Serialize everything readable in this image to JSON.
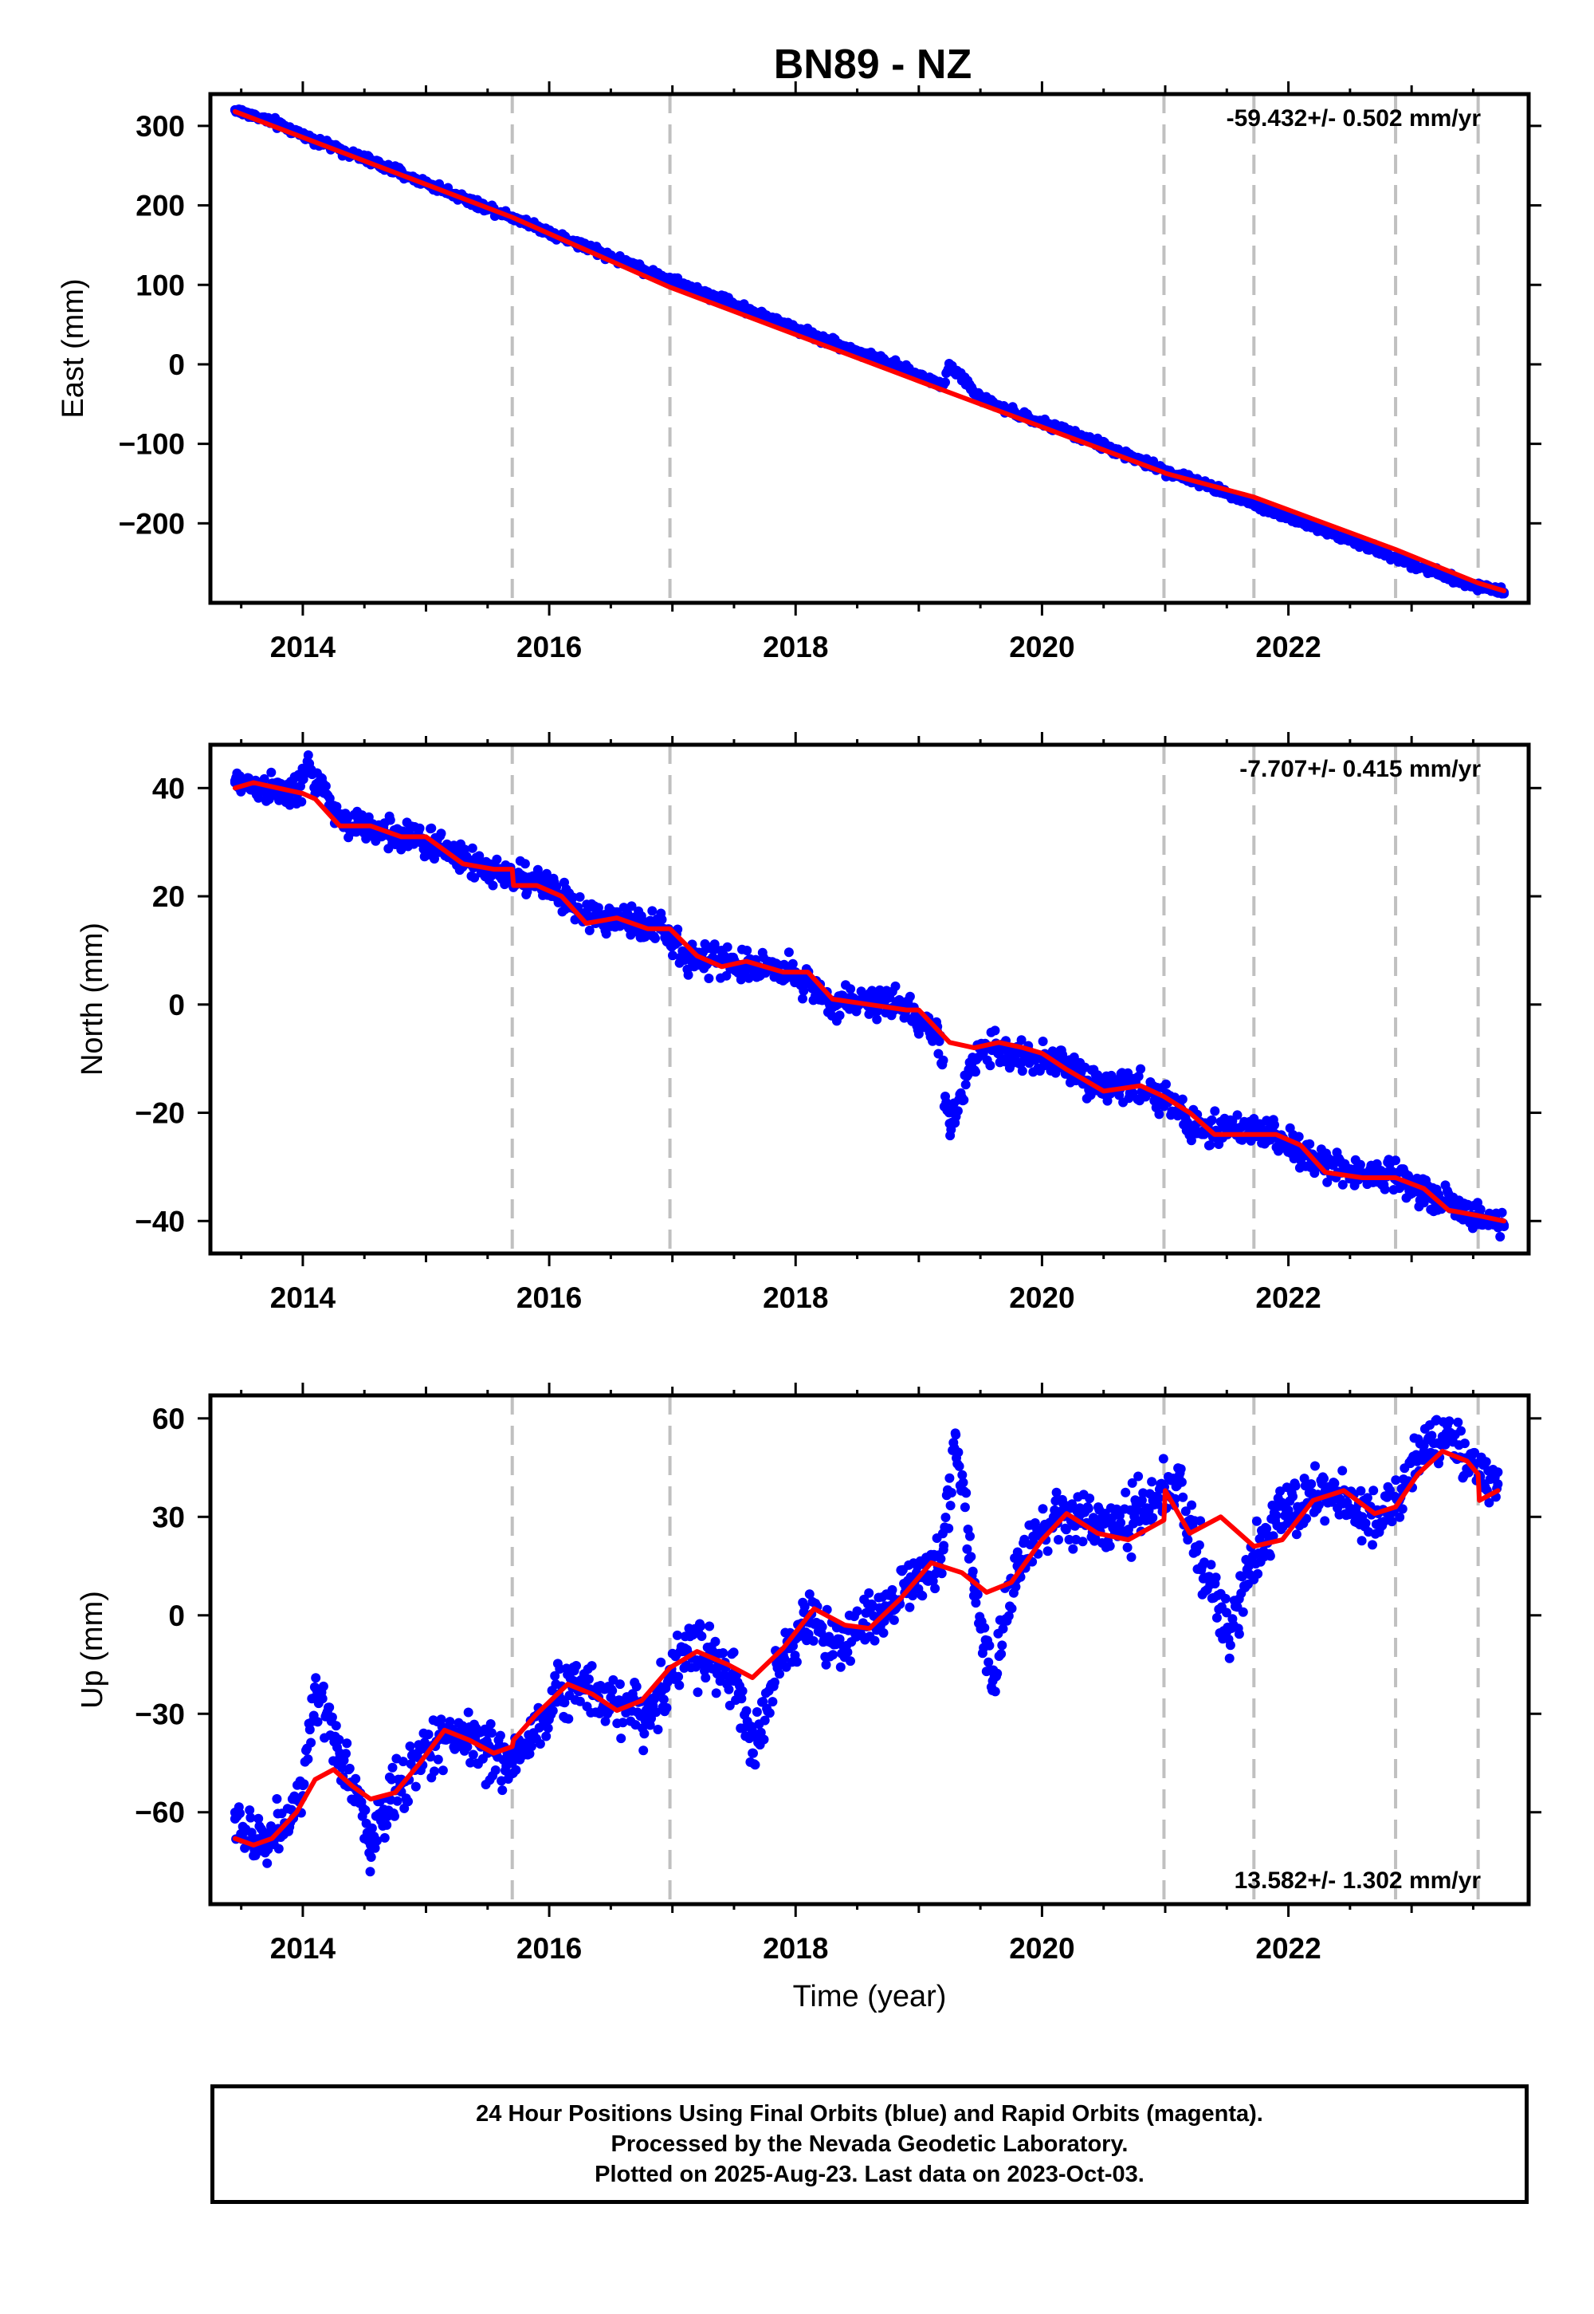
{
  "title": "BN89 - NZ",
  "footer": {
    "line1": "24 Hour Positions Using Final Orbits (blue) and Rapid Orbits (magenta).",
    "line2": "Processed by the Nevada Geodetic Laboratory.",
    "line3": "Plotted on 2025-Aug-23. Last data on 2023-Oct-03."
  },
  "colors": {
    "points": "#0000ff",
    "model": "#ff0000",
    "offset_lines": "#c0c0c0",
    "frame": "#000000"
  },
  "chart_data": [
    {
      "type": "scatter",
      "component": "east",
      "ylabel": "East (mm)",
      "xlabel": "",
      "rate_label": "-59.432+/- 0.502 mm/yr",
      "xlim": [
        2013.25,
        2023.95
      ],
      "ylim": [
        -300,
        340
      ],
      "xticks": [
        2014,
        2016,
        2018,
        2020,
        2022
      ],
      "yticks": [
        -200,
        -100,
        0,
        100,
        200,
        300
      ],
      "ytick_labels": [
        "−200",
        "−100",
        "0",
        "100",
        "200",
        "300"
      ],
      "offset_lines_x": [
        2015.7,
        2016.98,
        2020.99,
        2021.72,
        2022.87,
        2023.54
      ],
      "series": [
        {
          "kind": "points",
          "x": [
            2013.45,
            2013.7,
            2013.95,
            2014.2,
            2014.5,
            2014.8,
            2015.1,
            2015.4,
            2015.7,
            2016.0,
            2016.3,
            2016.6,
            2016.9,
            2017.2,
            2017.5,
            2017.8,
            2018.1,
            2018.4,
            2018.7,
            2019.0,
            2019.2,
            2019.25,
            2019.5,
            2019.8,
            2020.1,
            2020.4,
            2020.7,
            2021.0,
            2021.3,
            2021.6,
            2021.9,
            2022.2,
            2022.5,
            2022.8,
            2023.1,
            2023.4,
            2023.75
          ],
          "y": [
            320,
            308,
            292,
            276,
            259,
            240,
            222,
            203,
            186,
            166,
            148,
            130,
            111,
            93,
            76,
            57,
            39,
            22,
            5,
            -14,
            -26,
            0,
            -43,
            -63,
            -79,
            -96,
            -115,
            -134,
            -150,
            -168,
            -187,
            -204,
            -221,
            -239,
            -256,
            -273,
            -287
          ]
        },
        {
          "kind": "model",
          "x": [
            2013.45,
            2015.7,
            2016.98,
            2019.0,
            2020.99,
            2021.0,
            2021.72,
            2022.87,
            2023.54,
            2023.75
          ],
          "y": [
            318,
            185,
            97,
            -21,
            -136,
            -137,
            -167,
            -233,
            -275,
            -285
          ]
        }
      ]
    },
    {
      "type": "scatter",
      "component": "north",
      "ylabel": "North (mm)",
      "xlabel": "",
      "rate_label": "-7.707+/- 0.415 mm/yr",
      "xlim": [
        2013.25,
        2023.95
      ],
      "ylim": [
        -46,
        48
      ],
      "xticks": [
        2014,
        2016,
        2018,
        2020,
        2022
      ],
      "yticks": [
        -40,
        -20,
        0,
        20,
        40
      ],
      "ytick_labels": [
        "−40",
        "−20",
        "0",
        "20",
        "40"
      ],
      "offset_lines_x": [
        2015.7,
        2016.98,
        2020.99,
        2021.72,
        2022.87,
        2023.54
      ],
      "series": [
        {
          "kind": "points",
          "x": [
            2013.45,
            2013.7,
            2013.95,
            2014.05,
            2014.3,
            2014.6,
            2014.9,
            2015.2,
            2015.5,
            2015.8,
            2016.0,
            2016.3,
            2016.6,
            2016.9,
            2017.1,
            2017.4,
            2017.7,
            2018.0,
            2018.3,
            2018.6,
            2018.9,
            2019.15,
            2019.25,
            2019.5,
            2019.8,
            2020.1,
            2020.4,
            2020.7,
            2021.0,
            2021.3,
            2021.6,
            2021.9,
            2022.2,
            2022.5,
            2022.8,
            2023.1,
            2023.4,
            2023.75
          ],
          "y": [
            41,
            40,
            39,
            44,
            34,
            32,
            31,
            28,
            25,
            23,
            22,
            16,
            16,
            14,
            9,
            8,
            7,
            6,
            0,
            1,
            -1,
            -5,
            -22,
            -8,
            -9,
            -10,
            -15,
            -15,
            -17,
            -24,
            -23,
            -24,
            -29,
            -31,
            -31,
            -34,
            -38,
            -41
          ]
        },
        {
          "kind": "model",
          "x": [
            2013.45,
            2013.6,
            2013.8,
            2014.0,
            2014.1,
            2014.3,
            2014.55,
            2014.8,
            2015.0,
            2015.3,
            2015.55,
            2015.7,
            2015.71,
            2015.9,
            2016.1,
            2016.3,
            2016.55,
            2016.8,
            2016.98,
            2017.2,
            2017.4,
            2017.6,
            2017.9,
            2018.1,
            2018.3,
            2018.6,
            2018.9,
            2019.0,
            2019.25,
            2019.45,
            2019.65,
            2019.85,
            2020.0,
            2020.2,
            2020.5,
            2020.8,
            2020.99,
            2021.2,
            2021.4,
            2021.72,
            2021.9,
            2022.1,
            2022.3,
            2022.6,
            2022.87,
            2023.1,
            2023.3,
            2023.54,
            2023.75
          ],
          "y": [
            40,
            41,
            40,
            39,
            38,
            33,
            33,
            31,
            31,
            26,
            25,
            25,
            22,
            22,
            20,
            15,
            16,
            14,
            14,
            9,
            7,
            8,
            6,
            6,
            1,
            0,
            -1,
            -1,
            -7,
            -8,
            -7,
            -8,
            -9,
            -12,
            -16,
            -15,
            -17,
            -20,
            -24,
            -24,
            -24,
            -26,
            -31,
            -32,
            -32,
            -34,
            -38,
            -39,
            -40
          ]
        }
      ]
    },
    {
      "type": "scatter",
      "component": "up",
      "ylabel": "Up (mm)",
      "xlabel": "Time (year)",
      "rate_label": "13.582+/- 1.302 mm/yr",
      "xlim": [
        2013.25,
        2023.95
      ],
      "ylim": [
        -88,
        67
      ],
      "xticks": [
        2014,
        2016,
        2018,
        2020,
        2022
      ],
      "yticks": [
        -60,
        -30,
        0,
        30,
        60
      ],
      "ytick_labels": [
        "−60",
        "−30",
        "0",
        "30",
        "60"
      ],
      "offset_lines_x": [
        2015.7,
        2016.98,
        2020.99,
        2021.72,
        2022.87,
        2023.54
      ],
      "series": [
        {
          "kind": "points",
          "x": [
            2013.45,
            2013.6,
            2013.8,
            2014.0,
            2014.1,
            2014.3,
            2014.45,
            2014.55,
            2014.8,
            2015.1,
            2015.3,
            2015.5,
            2015.7,
            2016.0,
            2016.2,
            2016.5,
            2016.8,
            2017.0,
            2017.1,
            2017.3,
            2017.5,
            2017.65,
            2017.9,
            2018.1,
            2018.3,
            2018.5,
            2018.8,
            2019.0,
            2019.2,
            2019.3,
            2019.45,
            2019.6,
            2019.8,
            2020.1,
            2020.3,
            2020.6,
            2020.9,
            2021.1,
            2021.3,
            2021.5,
            2021.6,
            2021.8,
            2022.0,
            2022.3,
            2022.6,
            2022.9,
            2023.1,
            2023.3,
            2023.5,
            2023.7
          ],
          "y": [
            -62,
            -70,
            -65,
            -55,
            -25,
            -42,
            -55,
            -70,
            -50,
            -38,
            -35,
            -42,
            -45,
            -28,
            -20,
            -25,
            -30,
            -18,
            -10,
            -12,
            -20,
            -42,
            -12,
            0,
            -8,
            -5,
            5,
            12,
            20,
            55,
            8,
            -20,
            15,
            28,
            30,
            25,
            35,
            40,
            15,
            -5,
            5,
            25,
            32,
            38,
            30,
            35,
            50,
            55,
            45,
            40
          ]
        },
        {
          "kind": "model",
          "x": [
            2013.45,
            2013.6,
            2013.75,
            2013.95,
            2014.1,
            2014.25,
            2014.4,
            2014.55,
            2014.75,
            2014.95,
            2015.15,
            2015.35,
            2015.55,
            2015.7,
            2015.71,
            2015.9,
            2016.15,
            2016.35,
            2016.55,
            2016.75,
            2016.98,
            2017.2,
            2017.45,
            2017.65,
            2017.9,
            2018.15,
            2018.4,
            2018.6,
            2018.85,
            2019.1,
            2019.35,
            2019.55,
            2019.75,
            2020.0,
            2020.2,
            2020.45,
            2020.7,
            2020.99,
            2021.0,
            2021.2,
            2021.45,
            2021.72,
            2021.95,
            2022.2,
            2022.45,
            2022.7,
            2022.87,
            2023.05,
            2023.25,
            2023.45,
            2023.54,
            2023.55,
            2023.7
          ],
          "y": [
            -68,
            -70,
            -68,
            -60,
            -50,
            -47,
            -52,
            -56,
            -54,
            -45,
            -35,
            -38,
            -42,
            -40,
            -38,
            -30,
            -21,
            -24,
            -29,
            -26,
            -16,
            -11,
            -15,
            -19,
            -10,
            2,
            -3,
            -4,
            5,
            16,
            13,
            7,
            10,
            23,
            31,
            25,
            23,
            29,
            38,
            25,
            30,
            21,
            23,
            35,
            38,
            31,
            33,
            43,
            50,
            47,
            43,
            35,
            38
          ]
        }
      ]
    }
  ]
}
